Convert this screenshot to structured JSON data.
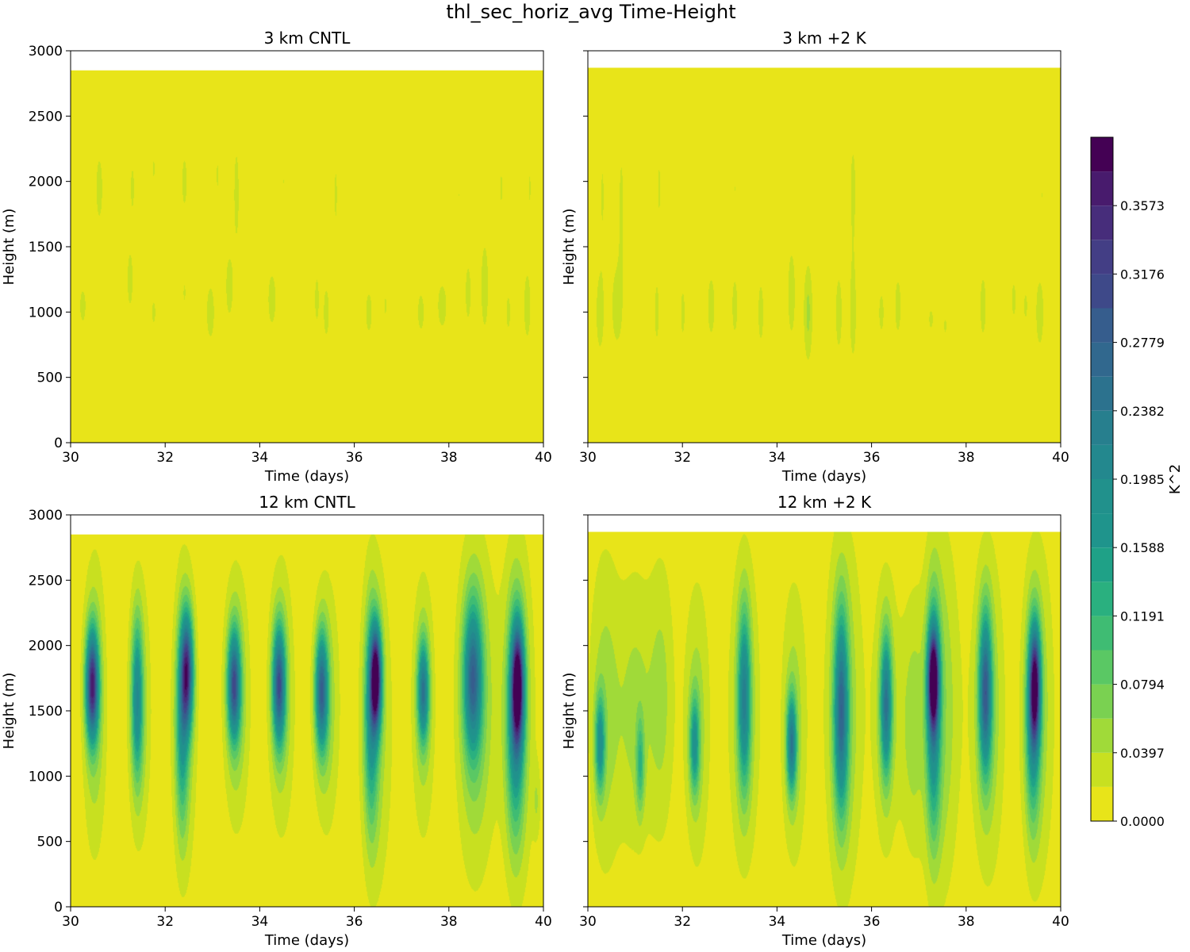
{
  "title": "thl_sec_horiz_avg Time-Height",
  "colorbar": {
    "label": "K^2",
    "tick_labels": [
      "0.0000",
      "0.0397",
      "0.0794",
      "0.1191",
      "0.1588",
      "0.1985",
      "0.2382",
      "0.2779",
      "0.3176",
      "0.3573"
    ],
    "levels": [
      0.0,
      0.01985,
      0.0397,
      0.05955,
      0.0794,
      0.09925,
      0.1191,
      0.13895,
      0.1588,
      0.17865,
      0.1985,
      0.21835,
      0.2382,
      0.25805,
      0.2779,
      0.29775,
      0.3176,
      0.33745,
      0.3573,
      0.37715,
      0.397
    ],
    "colors": [
      "#e8e419",
      "#c8e020",
      "#a0da39",
      "#7ad151",
      "#5ac864",
      "#3fbc73",
      "#2ab07f",
      "#1fa187",
      "#1f948c",
      "#21918c",
      "#23888e",
      "#277f8e",
      "#2c728e",
      "#31688e",
      "#365d8d",
      "#3e4989",
      "#433e85",
      "#472d7b",
      "#481b6d",
      "#440154"
    ]
  },
  "chart_data": [
    {
      "type": "heatmap",
      "title": "3 km CNTL",
      "xlabel": "Time (days)",
      "ylabel": "Height (m)",
      "xlim": [
        30,
        40
      ],
      "ylim": [
        0,
        3000
      ],
      "xticks": [
        "30",
        "32",
        "34",
        "36",
        "38",
        "40"
      ],
      "yticks": [
        "0",
        "500",
        "1000",
        "1500",
        "2000",
        "2500",
        "3000"
      ],
      "data_top": 2850,
      "blobs": [
        {
          "t": 30.25,
          "z": 1050,
          "sx": 0.06,
          "sz": 120,
          "a": 0.03
        },
        {
          "t": 30.6,
          "z": 1950,
          "sx": 0.07,
          "sz": 250,
          "a": 0.028
        },
        {
          "t": 31.25,
          "z": 1250,
          "sx": 0.05,
          "sz": 180,
          "a": 0.033
        },
        {
          "t": 31.3,
          "z": 1950,
          "sx": 0.05,
          "sz": 220,
          "a": 0.024
        },
        {
          "t": 31.75,
          "z": 2100,
          "sx": 0.04,
          "sz": 120,
          "a": 0.022
        },
        {
          "t": 31.75,
          "z": 1000,
          "sx": 0.05,
          "sz": 120,
          "a": 0.024
        },
        {
          "t": 32.4,
          "z": 1150,
          "sx": 0.04,
          "sz": 120,
          "a": 0.022
        },
        {
          "t": 32.4,
          "z": 2000,
          "sx": 0.06,
          "sz": 220,
          "a": 0.026
        },
        {
          "t": 32.95,
          "z": 1000,
          "sx": 0.08,
          "sz": 200,
          "a": 0.03
        },
        {
          "t": 33.1,
          "z": 2050,
          "sx": 0.04,
          "sz": 170,
          "a": 0.022
        },
        {
          "t": 33.35,
          "z": 1200,
          "sx": 0.06,
          "sz": 190,
          "a": 0.035
        },
        {
          "t": 33.5,
          "z": 1900,
          "sx": 0.06,
          "sz": 400,
          "a": 0.026
        },
        {
          "t": 34.25,
          "z": 1100,
          "sx": 0.07,
          "sz": 170,
          "a": 0.034
        },
        {
          "t": 34.5,
          "z": 2000,
          "sx": 0.04,
          "sz": 130,
          "a": 0.02
        },
        {
          "t": 35.2,
          "z": 1100,
          "sx": 0.05,
          "sz": 200,
          "a": 0.026
        },
        {
          "t": 35.4,
          "z": 1000,
          "sx": 0.06,
          "sz": 200,
          "a": 0.028
        },
        {
          "t": 35.6,
          "z": 1900,
          "sx": 0.05,
          "sz": 350,
          "a": 0.022
        },
        {
          "t": 36.3,
          "z": 1000,
          "sx": 0.07,
          "sz": 160,
          "a": 0.028
        },
        {
          "t": 36.65,
          "z": 1050,
          "sx": 0.04,
          "sz": 130,
          "a": 0.022
        },
        {
          "t": 36.7,
          "z": 1950,
          "sx": 0.04,
          "sz": 150,
          "a": 0.02
        },
        {
          "t": 37.4,
          "z": 1000,
          "sx": 0.07,
          "sz": 150,
          "a": 0.028
        },
        {
          "t": 37.85,
          "z": 1050,
          "sx": 0.1,
          "sz": 180,
          "a": 0.028
        },
        {
          "t": 38.2,
          "z": 1900,
          "sx": 0.04,
          "sz": 200,
          "a": 0.02
        },
        {
          "t": 38.4,
          "z": 1150,
          "sx": 0.06,
          "sz": 220,
          "a": 0.028
        },
        {
          "t": 38.75,
          "z": 1200,
          "sx": 0.07,
          "sz": 300,
          "a": 0.032
        },
        {
          "t": 39.1,
          "z": 1950,
          "sx": 0.05,
          "sz": 200,
          "a": 0.022
        },
        {
          "t": 39.25,
          "z": 1000,
          "sx": 0.05,
          "sz": 150,
          "a": 0.026
        },
        {
          "t": 39.65,
          "z": 1050,
          "sx": 0.06,
          "sz": 220,
          "a": 0.034
        },
        {
          "t": 39.7,
          "z": 1950,
          "sx": 0.04,
          "sz": 200,
          "a": 0.022
        }
      ]
    },
    {
      "type": "heatmap",
      "title": "3 km +2 K",
      "xlabel": "Time (days)",
      "ylabel": "Height (m)",
      "xlim": [
        30,
        40
      ],
      "ylim": [
        0,
        3000
      ],
      "xticks": [
        "30",
        "32",
        "34",
        "36",
        "38",
        "40"
      ],
      "yticks": [
        "0",
        "500",
        "1000",
        "1500",
        "2000",
        "2500",
        "3000"
      ],
      "data_top": 2870,
      "blobs": [
        {
          "t": 30.25,
          "z": 1000,
          "sx": 0.08,
          "sz": 280,
          "a": 0.03
        },
        {
          "t": 30.3,
          "z": 1900,
          "sx": 0.05,
          "sz": 350,
          "a": 0.022
        },
        {
          "t": 30.6,
          "z": 1050,
          "sx": 0.09,
          "sz": 250,
          "a": 0.032
        },
        {
          "t": 30.7,
          "z": 1800,
          "sx": 0.06,
          "sz": 500,
          "a": 0.024
        },
        {
          "t": 31.45,
          "z": 1000,
          "sx": 0.05,
          "sz": 250,
          "a": 0.026
        },
        {
          "t": 31.5,
          "z": 1950,
          "sx": 0.05,
          "sz": 320,
          "a": 0.022
        },
        {
          "t": 32.0,
          "z": 1000,
          "sx": 0.05,
          "sz": 200,
          "a": 0.026
        },
        {
          "t": 32.6,
          "z": 1050,
          "sx": 0.06,
          "sz": 180,
          "a": 0.036
        },
        {
          "t": 33.1,
          "z": 1050,
          "sx": 0.06,
          "sz": 220,
          "a": 0.028
        },
        {
          "t": 33.1,
          "z": 1950,
          "sx": 0.04,
          "sz": 220,
          "a": 0.02
        },
        {
          "t": 33.65,
          "z": 1000,
          "sx": 0.05,
          "sz": 200,
          "a": 0.032
        },
        {
          "t": 34.3,
          "z": 1150,
          "sx": 0.06,
          "sz": 250,
          "a": 0.038
        },
        {
          "t": 34.65,
          "z": 1000,
          "sx": 0.07,
          "sz": 280,
          "a": 0.045
        },
        {
          "t": 35.3,
          "z": 1000,
          "sx": 0.06,
          "sz": 250,
          "a": 0.032
        },
        {
          "t": 35.6,
          "z": 1000,
          "sx": 0.06,
          "sz": 320,
          "a": 0.032
        },
        {
          "t": 35.6,
          "z": 1950,
          "sx": 0.06,
          "sz": 350,
          "a": 0.026
        },
        {
          "t": 36.2,
          "z": 1000,
          "sx": 0.06,
          "sz": 170,
          "a": 0.026
        },
        {
          "t": 36.55,
          "z": 1050,
          "sx": 0.06,
          "sz": 200,
          "a": 0.03
        },
        {
          "t": 36.55,
          "z": 2050,
          "sx": 0.04,
          "sz": 220,
          "a": 0.02
        },
        {
          "t": 37.25,
          "z": 950,
          "sx": 0.06,
          "sz": 100,
          "a": 0.024
        },
        {
          "t": 37.55,
          "z": 900,
          "sx": 0.05,
          "sz": 100,
          "a": 0.022
        },
        {
          "t": 38.35,
          "z": 1050,
          "sx": 0.06,
          "sz": 220,
          "a": 0.03
        },
        {
          "t": 38.55,
          "z": 1950,
          "sx": 0.04,
          "sz": 200,
          "a": 0.02
        },
        {
          "t": 39.0,
          "z": 1100,
          "sx": 0.05,
          "sz": 150,
          "a": 0.026
        },
        {
          "t": 39.25,
          "z": 1050,
          "sx": 0.05,
          "sz": 130,
          "a": 0.024
        },
        {
          "t": 39.55,
          "z": 1000,
          "sx": 0.07,
          "sz": 220,
          "a": 0.034
        },
        {
          "t": 39.6,
          "z": 1900,
          "sx": 0.04,
          "sz": 150,
          "a": 0.02
        }
      ]
    },
    {
      "type": "heatmap",
      "title": "12 km CNTL",
      "xlabel": "Time (days)",
      "ylabel": "Height (m)",
      "xlim": [
        30,
        40
      ],
      "ylim": [
        0,
        3000
      ],
      "xticks": [
        "30",
        "32",
        "34",
        "36",
        "38",
        "40"
      ],
      "yticks": [
        "0",
        "500",
        "1000",
        "1500",
        "2000",
        "2500",
        "3000"
      ],
      "data_top": 2850,
      "blobs": [
        {
          "t": 30.45,
          "z": 1700,
          "sx": 0.09,
          "sz": 280,
          "a": 0.32
        },
        {
          "t": 30.5,
          "z": 1550,
          "sx": 0.18,
          "sz": 800,
          "a": 0.06
        },
        {
          "t": 31.4,
          "z": 1600,
          "sx": 0.08,
          "sz": 400,
          "a": 0.16
        },
        {
          "t": 31.45,
          "z": 1500,
          "sx": 0.18,
          "sz": 750,
          "a": 0.05
        },
        {
          "t": 32.45,
          "z": 1800,
          "sx": 0.09,
          "sz": 300,
          "a": 0.3
        },
        {
          "t": 32.35,
          "z": 1350,
          "sx": 0.09,
          "sz": 500,
          "a": 0.12
        },
        {
          "t": 32.4,
          "z": 1450,
          "sx": 0.2,
          "sz": 900,
          "a": 0.05
        },
        {
          "t": 33.45,
          "z": 1700,
          "sx": 0.09,
          "sz": 280,
          "a": 0.26
        },
        {
          "t": 33.5,
          "z": 1600,
          "sx": 0.2,
          "sz": 700,
          "a": 0.06
        },
        {
          "t": 34.4,
          "z": 1700,
          "sx": 0.09,
          "sz": 300,
          "a": 0.26
        },
        {
          "t": 34.45,
          "z": 1600,
          "sx": 0.2,
          "sz": 750,
          "a": 0.055
        },
        {
          "t": 35.3,
          "z": 1650,
          "sx": 0.09,
          "sz": 300,
          "a": 0.24
        },
        {
          "t": 35.4,
          "z": 1550,
          "sx": 0.2,
          "sz": 700,
          "a": 0.055
        },
        {
          "t": 36.45,
          "z": 1750,
          "sx": 0.08,
          "sz": 260,
          "a": 0.37
        },
        {
          "t": 36.35,
          "z": 1450,
          "sx": 0.1,
          "sz": 550,
          "a": 0.14
        },
        {
          "t": 36.45,
          "z": 1400,
          "sx": 0.25,
          "sz": 950,
          "a": 0.05
        },
        {
          "t": 37.45,
          "z": 1650,
          "sx": 0.08,
          "sz": 260,
          "a": 0.2
        },
        {
          "t": 37.45,
          "z": 1550,
          "sx": 0.18,
          "sz": 750,
          "a": 0.05
        },
        {
          "t": 38.5,
          "z": 1750,
          "sx": 0.13,
          "sz": 380,
          "a": 0.22
        },
        {
          "t": 38.55,
          "z": 1550,
          "sx": 0.28,
          "sz": 900,
          "a": 0.07
        },
        {
          "t": 39.45,
          "z": 1700,
          "sx": 0.09,
          "sz": 300,
          "a": 0.32
        },
        {
          "t": 39.4,
          "z": 1400,
          "sx": 0.12,
          "sz": 550,
          "a": 0.15
        },
        {
          "t": 39.45,
          "z": 1500,
          "sx": 0.25,
          "sz": 950,
          "a": 0.06
        },
        {
          "t": 39.85,
          "z": 800,
          "sx": 0.06,
          "sz": 200,
          "a": 0.03
        }
      ]
    },
    {
      "type": "heatmap",
      "title": "12 km +2 K",
      "xlabel": "Time (days)",
      "ylabel": "Height (m)",
      "xlim": [
        30,
        40
      ],
      "ylim": [
        0,
        3000
      ],
      "xticks": [
        "30",
        "32",
        "34",
        "36",
        "38",
        "40"
      ],
      "yticks": [
        "0",
        "500",
        "1000",
        "1500",
        "2000",
        "2500",
        "3000"
      ],
      "data_top": 2870,
      "blobs": [
        {
          "t": 30.25,
          "z": 1250,
          "sx": 0.07,
          "sz": 250,
          "a": 0.15
        },
        {
          "t": 30.35,
          "z": 1500,
          "sx": 0.25,
          "sz": 900,
          "a": 0.05
        },
        {
          "t": 31.0,
          "z": 1500,
          "sx": 0.25,
          "sz": 800,
          "a": 0.045
        },
        {
          "t": 31.1,
          "z": 1100,
          "sx": 0.06,
          "sz": 250,
          "a": 0.09
        },
        {
          "t": 31.55,
          "z": 1600,
          "sx": 0.2,
          "sz": 800,
          "a": 0.045
        },
        {
          "t": 32.25,
          "z": 1250,
          "sx": 0.07,
          "sz": 250,
          "a": 0.14
        },
        {
          "t": 32.3,
          "z": 1400,
          "sx": 0.2,
          "sz": 800,
          "a": 0.05
        },
        {
          "t": 33.3,
          "z": 1600,
          "sx": 0.09,
          "sz": 450,
          "a": 0.18
        },
        {
          "t": 33.3,
          "z": 1500,
          "sx": 0.25,
          "sz": 900,
          "a": 0.05
        },
        {
          "t": 34.3,
          "z": 1250,
          "sx": 0.07,
          "sz": 250,
          "a": 0.2
        },
        {
          "t": 34.35,
          "z": 1400,
          "sx": 0.2,
          "sz": 800,
          "a": 0.05
        },
        {
          "t": 35.35,
          "z": 1500,
          "sx": 0.1,
          "sz": 500,
          "a": 0.22
        },
        {
          "t": 35.4,
          "z": 1500,
          "sx": 0.28,
          "sz": 1000,
          "a": 0.06
        },
        {
          "t": 36.3,
          "z": 1550,
          "sx": 0.08,
          "sz": 350,
          "a": 0.2
        },
        {
          "t": 36.3,
          "z": 1500,
          "sx": 0.2,
          "sz": 800,
          "a": 0.05
        },
        {
          "t": 36.85,
          "z": 1400,
          "sx": 0.18,
          "sz": 700,
          "a": 0.045
        },
        {
          "t": 37.3,
          "z": 1750,
          "sx": 0.08,
          "sz": 250,
          "a": 0.33
        },
        {
          "t": 37.3,
          "z": 1450,
          "sx": 0.1,
          "sz": 600,
          "a": 0.16
        },
        {
          "t": 37.45,
          "z": 1500,
          "sx": 0.28,
          "sz": 1000,
          "a": 0.06
        },
        {
          "t": 38.4,
          "z": 1650,
          "sx": 0.09,
          "sz": 400,
          "a": 0.24
        },
        {
          "t": 38.45,
          "z": 1500,
          "sx": 0.24,
          "sz": 900,
          "a": 0.06
        },
        {
          "t": 39.45,
          "z": 1700,
          "sx": 0.08,
          "sz": 300,
          "a": 0.3
        },
        {
          "t": 39.4,
          "z": 1400,
          "sx": 0.1,
          "sz": 500,
          "a": 0.14
        },
        {
          "t": 39.5,
          "z": 1500,
          "sx": 0.25,
          "sz": 950,
          "a": 0.055
        }
      ]
    }
  ]
}
